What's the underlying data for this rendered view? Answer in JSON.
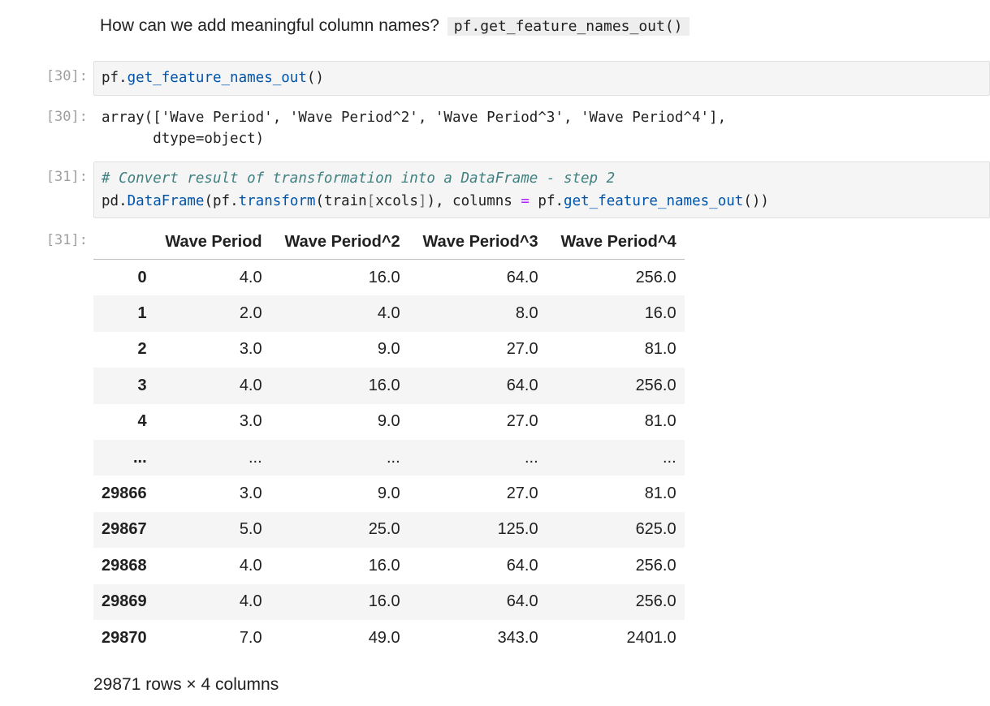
{
  "markdown": {
    "text": "How can we add meaningful column names?",
    "code": "pf.get_feature_names_out()"
  },
  "cell30": {
    "in_prompt": "[30]:",
    "out_prompt": "[30]:",
    "code": {
      "obj": "pf",
      "dot": ".",
      "method": "get_feature_names_out",
      "call": "()"
    },
    "output_line1": "array(['Wave Period', 'Wave Period^2', 'Wave Period^3', 'Wave Period^4'],",
    "output_line2": "      dtype=object)"
  },
  "cell31": {
    "in_prompt": "[31]:",
    "out_prompt": "[31]:",
    "comment": "# Convert result of transformation into a DataFrame - step 2",
    "code_parts": [
      "pd",
      ".",
      "DataFrame",
      "(pf",
      ".",
      "transform",
      "(train",
      "[",
      "xcols",
      "]",
      "), columns ",
      "=",
      " pf",
      ".",
      "get_feature_names_out",
      "())"
    ]
  },
  "dataframe": {
    "columns": [
      "",
      "Wave Period",
      "Wave Period^2",
      "Wave Period^3",
      "Wave Period^4"
    ],
    "rows": [
      [
        "0",
        "4.0",
        "16.0",
        "64.0",
        "256.0"
      ],
      [
        "1",
        "2.0",
        "4.0",
        "8.0",
        "16.0"
      ],
      [
        "2",
        "3.0",
        "9.0",
        "27.0",
        "81.0"
      ],
      [
        "3",
        "4.0",
        "16.0",
        "64.0",
        "256.0"
      ],
      [
        "4",
        "3.0",
        "9.0",
        "27.0",
        "81.0"
      ],
      [
        "...",
        "...",
        "...",
        "...",
        "..."
      ],
      [
        "29866",
        "3.0",
        "9.0",
        "27.0",
        "81.0"
      ],
      [
        "29867",
        "5.0",
        "25.0",
        "125.0",
        "625.0"
      ],
      [
        "29868",
        "4.0",
        "16.0",
        "64.0",
        "256.0"
      ],
      [
        "29869",
        "4.0",
        "16.0",
        "64.0",
        "256.0"
      ],
      [
        "29870",
        "7.0",
        "49.0",
        "343.0",
        "2401.0"
      ]
    ],
    "shape": "29871 rows × 4 columns"
  },
  "colors": {
    "prompt": "#9e9e9e",
    "input_bg": "#f5f5f5",
    "attr_blue": "#0055aa",
    "comment_teal": "#408080",
    "operator_purple": "#aa22ff"
  }
}
